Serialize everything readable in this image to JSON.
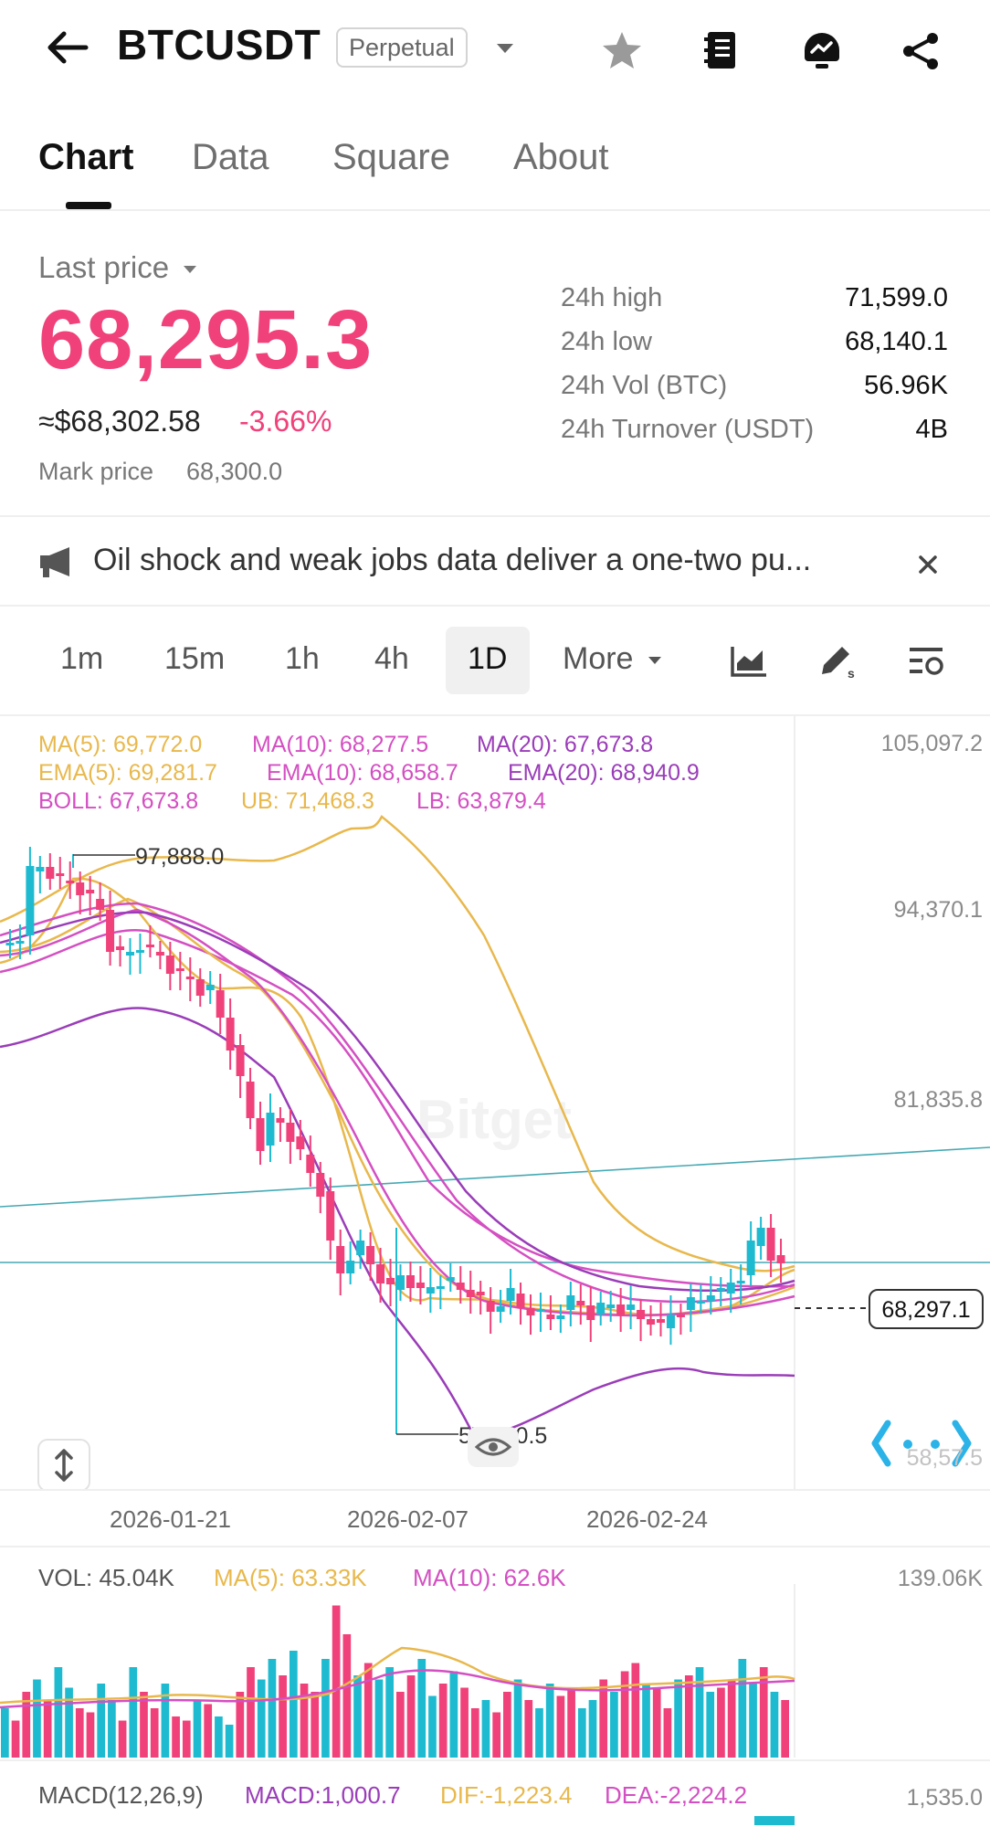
{
  "header": {
    "title": "BTCUSDT",
    "badge": "Perpetual",
    "back_icon": "back-arrow-icon",
    "dropdown_icon": "caret-down-icon",
    "favorite_icon": "star-icon",
    "notes_icon": "notebook-icon",
    "bot_icon": "bot-icon",
    "share_icon": "share-icon"
  },
  "tabs": [
    {
      "label": "Chart",
      "active": true
    },
    {
      "label": "Data"
    },
    {
      "label": "Square"
    },
    {
      "label": "About"
    }
  ],
  "price": {
    "last_label": "Last price",
    "last": "68,295.3",
    "usd": "≈$68,302.58",
    "change": "-3.66%",
    "mark_label": "Mark price",
    "mark": "68,300.0"
  },
  "stats": [
    {
      "label": "24h high",
      "value": "71,599.0"
    },
    {
      "label": "24h low",
      "value": "68,140.1"
    },
    {
      "label": "24h Vol (BTC)",
      "value": "56.96K"
    },
    {
      "label": "24h Turnover (USDT)",
      "value": "4B"
    }
  ],
  "news": {
    "text": "Oil shock and weak jobs data deliver a one-two pu...",
    "icon": "megaphone-icon",
    "close_icon": "close-icon"
  },
  "intervals": {
    "items": [
      "1m",
      "15m",
      "1h",
      "4h",
      "1D"
    ],
    "active": "1D",
    "more_label": "More",
    "indicator_icon": "chart-area-icon",
    "draw_icon": "draw-pen-icon",
    "settings_icon": "chart-settings-icon"
  },
  "legend": {
    "ma5": "MA(5): 69,772.0",
    "ma10": "MA(10): 68,277.5",
    "ma20": "MA(20): 67,673.8",
    "ema5": "EMA(5): 69,281.7",
    "ema10": "EMA(10): 68,658.7",
    "ema20": "EMA(20): 68,940.9",
    "boll": "BOLL: 67,673.8",
    "ub": "UB: 71,468.3",
    "lb": "LB: 63,879.4"
  },
  "chart_data": {
    "type": "candlestick",
    "y_ticks": [
      "105,097.2",
      "94,370.1",
      "81,835.8",
      "58,57.5"
    ],
    "x_ticks": [
      "2026-01-21",
      "2026-02-07",
      "2026-02-24"
    ],
    "high_marker": "97,888.0",
    "low_marker": "57,900.5",
    "current_price_tag": "68,297.1",
    "watermark": "Bitget",
    "colors": {
      "up": "#1ebbd0",
      "down": "#f0417a",
      "ma5": "#e8b84c",
      "ma10": "#d44fc2",
      "ma20": "#9a3db8",
      "trend": "#45a9b4"
    }
  },
  "volume": {
    "vol": "VOL: 45.04K",
    "ma5": "MA(5): 63.33K",
    "ma10": "MA(10): 62.6K",
    "axis_max": "139.06K"
  },
  "macd": {
    "label": "MACD(12,26,9)",
    "macd": "MACD:1,000.7",
    "dif": "DIF:-1,223.4",
    "dea": "DEA:-2,224.2",
    "axis_max": "1,535.0"
  }
}
